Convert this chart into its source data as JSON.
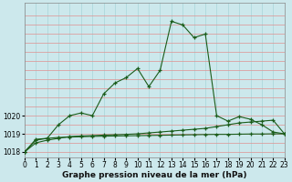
{
  "xlabel": "Graphe pression niveau de la mer (hPa)",
  "bg_color": "#cce8ec",
  "grid_color_h": "#f0a0a0",
  "grid_color_v": "#a8d4d8",
  "line_color": "#1a5c1a",
  "x": [
    0,
    1,
    2,
    3,
    4,
    5,
    6,
    7,
    8,
    9,
    10,
    11,
    12,
    13,
    14,
    15,
    16,
    17,
    18,
    19,
    20,
    21,
    22,
    23
  ],
  "line_main": [
    1018.0,
    1018.7,
    1018.75,
    1019.5,
    1020.0,
    1020.15,
    1020.0,
    1021.2,
    1021.8,
    1022.1,
    1022.6,
    1021.6,
    1022.5,
    1025.2,
    1025.0,
    1024.3,
    1024.5,
    1020.0,
    1019.7,
    1019.95,
    1019.8,
    1019.5,
    1019.1,
    1019.0
  ],
  "line_slow": [
    1018.0,
    1018.5,
    1018.65,
    1018.75,
    1018.85,
    1018.88,
    1018.9,
    1018.93,
    1018.95,
    1018.97,
    1019.0,
    1019.05,
    1019.1,
    1019.15,
    1019.2,
    1019.25,
    1019.3,
    1019.4,
    1019.5,
    1019.6,
    1019.65,
    1019.7,
    1019.75,
    1019.0
  ],
  "line_flat": [
    1018.0,
    1018.65,
    1018.75,
    1018.8,
    1018.82,
    1018.84,
    1018.86,
    1018.87,
    1018.88,
    1018.89,
    1018.9,
    1018.91,
    1018.92,
    1018.93,
    1018.94,
    1018.95,
    1018.96,
    1018.97,
    1018.97,
    1018.98,
    1018.99,
    1018.99,
    1019.0,
    1019.0
  ],
  "ylim": [
    1017.7,
    1026.2
  ],
  "xlim": [
    0,
    23
  ],
  "yticks": [
    1018,
    1019,
    1020
  ],
  "xticks": [
    0,
    1,
    2,
    3,
    4,
    5,
    6,
    7,
    8,
    9,
    10,
    11,
    12,
    13,
    14,
    15,
    16,
    17,
    18,
    19,
    20,
    21,
    22,
    23
  ],
  "label_fontsize": 6.5,
  "tick_fontsize": 5.5
}
